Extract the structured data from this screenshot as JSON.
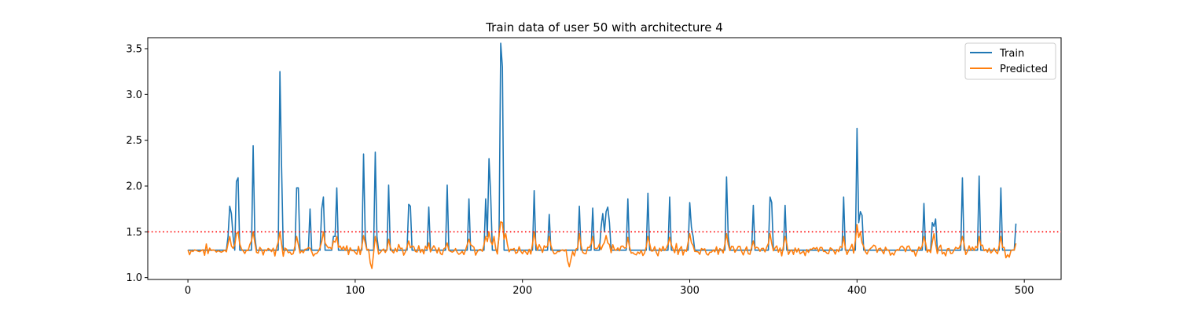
{
  "chart_data": {
    "type": "line",
    "title": "Train data of user 50 with architecture 4",
    "xlabel": "",
    "ylabel": "",
    "xlim": [
      -24,
      522
    ],
    "ylim": [
      0.98,
      3.62
    ],
    "xticks": [
      0,
      100,
      200,
      300,
      400,
      500
    ],
    "yticks": [
      1.0,
      1.5,
      2.0,
      2.5,
      3.0,
      3.5
    ],
    "ytick_labels": [
      "1.0",
      "1.5",
      "2.0",
      "2.5",
      "3.0",
      "3.5"
    ],
    "grid": false,
    "legend_position": "top-right",
    "series": [
      {
        "name": "Train",
        "color": "#1f77b4",
        "baseline": 1.3,
        "length": 496,
        "peaks": [
          [
            23,
            1.3
          ],
          [
            24,
            1.45
          ],
          [
            25,
            1.78
          ],
          [
            26,
            1.7
          ],
          [
            27,
            1.45
          ],
          [
            28,
            1.3
          ],
          [
            29,
            2.05
          ],
          [
            30,
            2.09
          ],
          [
            31,
            1.3
          ],
          [
            38,
            1.3
          ],
          [
            39,
            2.44
          ],
          [
            40,
            1.45
          ],
          [
            41,
            1.3
          ],
          [
            54,
            1.3
          ],
          [
            55,
            3.25
          ],
          [
            56,
            2.2
          ],
          [
            57,
            1.3
          ],
          [
            64,
            1.3
          ],
          [
            65,
            1.98
          ],
          [
            66,
            1.98
          ],
          [
            67,
            1.3
          ],
          [
            72,
            1.3
          ],
          [
            73,
            1.75
          ],
          [
            74,
            1.3
          ],
          [
            79,
            1.3
          ],
          [
            80,
            1.75
          ],
          [
            81,
            1.88
          ],
          [
            82,
            1.3
          ],
          [
            86,
            1.3
          ],
          [
            87,
            1.45
          ],
          [
            88,
            1.45
          ],
          [
            89,
            1.98
          ],
          [
            90,
            1.3
          ],
          [
            104,
            1.3
          ],
          [
            105,
            2.35
          ],
          [
            106,
            1.45
          ],
          [
            107,
            1.3
          ],
          [
            111,
            1.3
          ],
          [
            112,
            2.37
          ],
          [
            113,
            1.45
          ],
          [
            114,
            1.3
          ],
          [
            119,
            1.3
          ],
          [
            120,
            2.01
          ],
          [
            121,
            1.3
          ],
          [
            131,
            1.3
          ],
          [
            132,
            1.8
          ],
          [
            133,
            1.78
          ],
          [
            134,
            1.3
          ],
          [
            143,
            1.3
          ],
          [
            144,
            1.77
          ],
          [
            145,
            1.3
          ],
          [
            154,
            1.3
          ],
          [
            155,
            2.01
          ],
          [
            156,
            1.3
          ],
          [
            167,
            1.3
          ],
          [
            168,
            1.86
          ],
          [
            169,
            1.3
          ],
          [
            177,
            1.3
          ],
          [
            178,
            1.86
          ],
          [
            179,
            1.45
          ],
          [
            180,
            2.3
          ],
          [
            181,
            1.9
          ],
          [
            182,
            1.3
          ],
          [
            185,
            1.3
          ],
          [
            186,
            1.45
          ],
          [
            187,
            3.56
          ],
          [
            188,
            3.3
          ],
          [
            189,
            1.3
          ],
          [
            206,
            1.3
          ],
          [
            207,
            1.95
          ],
          [
            208,
            1.3
          ],
          [
            215,
            1.3
          ],
          [
            216,
            1.69
          ],
          [
            217,
            1.3
          ],
          [
            233,
            1.3
          ],
          [
            234,
            1.78
          ],
          [
            235,
            1.3
          ],
          [
            241,
            1.3
          ],
          [
            242,
            1.76
          ],
          [
            243,
            1.3
          ],
          [
            246,
            1.3
          ],
          [
            247,
            1.55
          ],
          [
            248,
            1.7
          ],
          [
            249,
            1.5
          ],
          [
            250,
            1.72
          ],
          [
            251,
            1.77
          ],
          [
            252,
            1.6
          ],
          [
            253,
            1.3
          ],
          [
            262,
            1.3
          ],
          [
            263,
            1.86
          ],
          [
            264,
            1.3
          ],
          [
            274,
            1.3
          ],
          [
            275,
            1.92
          ],
          [
            276,
            1.3
          ],
          [
            287,
            1.3
          ],
          [
            288,
            1.88
          ],
          [
            289,
            1.3
          ],
          [
            299,
            1.3
          ],
          [
            300,
            1.82
          ],
          [
            301,
            1.55
          ],
          [
            302,
            1.45
          ],
          [
            303,
            1.3
          ],
          [
            321,
            1.3
          ],
          [
            322,
            2.1
          ],
          [
            323,
            1.45
          ],
          [
            324,
            1.3
          ],
          [
            337,
            1.3
          ],
          [
            338,
            1.79
          ],
          [
            339,
            1.3
          ],
          [
            347,
            1.3
          ],
          [
            348,
            1.88
          ],
          [
            349,
            1.82
          ],
          [
            350,
            1.3
          ],
          [
            356,
            1.3
          ],
          [
            357,
            1.79
          ],
          [
            358,
            1.3
          ],
          [
            391,
            1.3
          ],
          [
            392,
            1.88
          ],
          [
            393,
            1.3
          ],
          [
            399,
            1.3
          ],
          [
            400,
            2.63
          ],
          [
            401,
            1.6
          ],
          [
            402,
            1.72
          ],
          [
            403,
            1.68
          ],
          [
            404,
            1.3
          ],
          [
            439,
            1.3
          ],
          [
            440,
            1.81
          ],
          [
            441,
            1.3
          ],
          [
            444,
            1.3
          ],
          [
            445,
            1.6
          ],
          [
            446,
            1.56
          ],
          [
            447,
            1.64
          ],
          [
            448,
            1.3
          ],
          [
            462,
            1.3
          ],
          [
            463,
            2.09
          ],
          [
            464,
            1.3
          ],
          [
            472,
            1.3
          ],
          [
            473,
            2.11
          ],
          [
            474,
            1.3
          ],
          [
            485,
            1.3
          ],
          [
            486,
            1.98
          ],
          [
            487,
            1.3
          ],
          [
            494,
            1.3
          ],
          [
            495,
            1.59
          ]
        ]
      },
      {
        "name": "Predicted",
        "color": "#ff7f0e",
        "base": 1.3,
        "noise": 0.045,
        "length": 496,
        "bumps": [
          [
            25,
            1.45
          ],
          [
            29,
            1.52
          ],
          [
            30,
            1.5
          ],
          [
            39,
            1.5
          ],
          [
            55,
            1.5
          ],
          [
            65,
            1.45
          ],
          [
            81,
            1.5
          ],
          [
            89,
            1.45
          ],
          [
            105,
            1.46
          ],
          [
            110,
            1.1
          ],
          [
            112,
            1.45
          ],
          [
            120,
            1.42
          ],
          [
            132,
            1.4
          ],
          [
            144,
            1.38
          ],
          [
            155,
            1.38
          ],
          [
            168,
            1.42
          ],
          [
            178,
            1.45
          ],
          [
            180,
            1.5
          ],
          [
            183,
            1.45
          ],
          [
            187,
            1.68
          ],
          [
            188,
            1.6
          ],
          [
            190,
            1.48
          ],
          [
            207,
            1.5
          ],
          [
            216,
            1.45
          ],
          [
            228,
            1.12
          ],
          [
            234,
            1.48
          ],
          [
            242,
            1.45
          ],
          [
            250,
            1.46
          ],
          [
            263,
            1.44
          ],
          [
            275,
            1.45
          ],
          [
            288,
            1.44
          ],
          [
            300,
            1.48
          ],
          [
            322,
            1.48
          ],
          [
            338,
            1.4
          ],
          [
            348,
            1.48
          ],
          [
            357,
            1.45
          ],
          [
            392,
            1.45
          ],
          [
            400,
            1.58
          ],
          [
            402,
            1.5
          ],
          [
            440,
            1.45
          ],
          [
            446,
            1.48
          ],
          [
            463,
            1.45
          ],
          [
            473,
            1.45
          ],
          [
            486,
            1.45
          ],
          [
            490,
            1.25
          ]
        ]
      }
    ],
    "hlines": [
      {
        "y": 1.5,
        "color": "#ff0000",
        "style": "dotted"
      }
    ]
  }
}
